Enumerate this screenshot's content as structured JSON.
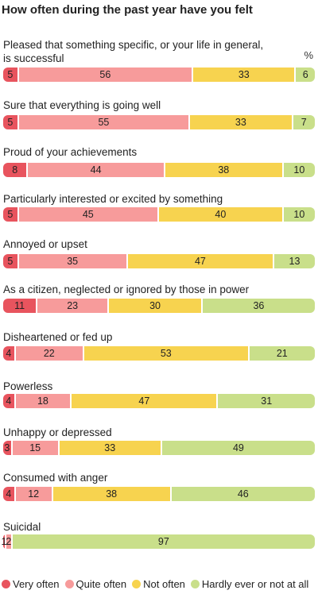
{
  "chart_data": {
    "type": "bar",
    "orientation": "horizontal-stacked-100",
    "title": "How often during the past year have you felt",
    "unit_label": "%",
    "xlim": [
      0,
      100
    ],
    "grid": false,
    "legend_position": "bottom",
    "legend": [
      {
        "name": "Very often",
        "color": "#e8545e"
      },
      {
        "name": "Quite often",
        "color": "#f79b9b"
      },
      {
        "name": "Not often",
        "color": "#f7d34f"
      },
      {
        "name": "Hardly ever or not at all",
        "color": "#c9df8a"
      }
    ],
    "categories": [
      "Pleased that something specific, or your life in general, is successful",
      "Sure that everything is going well",
      "Proud of your achievements",
      "Particularly interested or excited by something",
      "Annoyed or upset",
      "As a citizen, neglected or ignored by those in power",
      "Disheartened or fed up",
      "Powerless",
      "Unhappy or depressed",
      "Consumed with anger",
      "Suicidal"
    ],
    "series": [
      {
        "name": "Very often",
        "values": [
          5,
          5,
          8,
          5,
          5,
          11,
          4,
          4,
          3,
          4,
          1
        ]
      },
      {
        "name": "Quite often",
        "values": [
          56,
          55,
          44,
          45,
          35,
          23,
          22,
          18,
          15,
          12,
          2
        ]
      },
      {
        "name": "Not often",
        "values": [
          33,
          33,
          38,
          40,
          47,
          30,
          53,
          47,
          33,
          38,
          null
        ]
      },
      {
        "name": "Hardly ever or not at all",
        "values": [
          6,
          7,
          10,
          10,
          13,
          36,
          21,
          31,
          49,
          46,
          97
        ]
      }
    ]
  }
}
